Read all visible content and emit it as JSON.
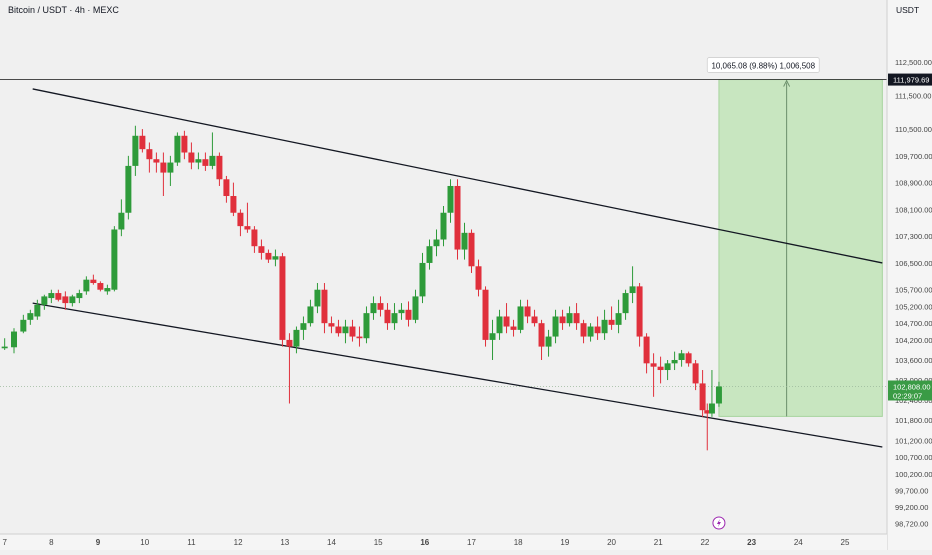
{
  "header": {
    "symbol_title": "Bitcoin / USDT · 4h · MEXC"
  },
  "price_axis": {
    "currency": "USDT",
    "ticks": [
      "112,500.00",
      "111,500.00",
      "110,500.00",
      "109,700.00",
      "108,900.00",
      "108,100.00",
      "107,300.00",
      "106,500.00",
      "105,700.00",
      "105,200.00",
      "104,700.00",
      "104,200.00",
      "103,600.00",
      "103,000.00",
      "102,400.00",
      "101,800.00",
      "101,200.00",
      "100,700.00",
      "100,200.00",
      "99,700.00",
      "99,200.00",
      "98,720.00"
    ]
  },
  "time_axis": {
    "ticks": [
      {
        "label": "7",
        "bold": false
      },
      {
        "label": "8",
        "bold": false
      },
      {
        "label": "9",
        "bold": true
      },
      {
        "label": "10",
        "bold": false
      },
      {
        "label": "11",
        "bold": false
      },
      {
        "label": "12",
        "bold": false
      },
      {
        "label": "13",
        "bold": false
      },
      {
        "label": "14",
        "bold": false
      },
      {
        "label": "15",
        "bold": false
      },
      {
        "label": "16",
        "bold": true
      },
      {
        "label": "17",
        "bold": false
      },
      {
        "label": "18",
        "bold": false
      },
      {
        "label": "19",
        "bold": false
      },
      {
        "label": "20",
        "bold": false
      },
      {
        "label": "21",
        "bold": false
      },
      {
        "label": "22",
        "bold": false
      },
      {
        "label": "23",
        "bold": true
      },
      {
        "label": "24",
        "bold": false
      },
      {
        "label": "25",
        "bold": false
      }
    ]
  },
  "price_labels": {
    "target": "111,979.69",
    "last_price": "102,808.00",
    "countdown": "02:29:07"
  },
  "projection": {
    "label": "10,065.08 (9.88%) 1,006,508"
  },
  "icons": {
    "event_marker": "lightning-icon"
  },
  "colors": {
    "up": "#2e9b3a",
    "down": "#e0303c",
    "zone_fill": "#c8e6c0",
    "zone_border": "#a6d49d",
    "channel_line": "#131722",
    "last_price_bg": "#3a9b45"
  },
  "chart_data": {
    "type": "candlestick",
    "title": "Bitcoin / USDT · 4h · MEXC",
    "y_unit": "USDT",
    "ylim": [
      98400,
      113700
    ],
    "x_axis": "date (day of month)",
    "xlim": [
      6.9,
      25.9
    ],
    "grid": false,
    "candles": [
      {
        "x": 7.0,
        "o": 103950,
        "h": 104250,
        "l": 103900,
        "c": 104000
      },
      {
        "x": 7.2,
        "o": 103980,
        "h": 104550,
        "l": 103800,
        "c": 104450
      },
      {
        "x": 7.4,
        "o": 104450,
        "h": 104950,
        "l": 104400,
        "c": 104800
      },
      {
        "x": 7.55,
        "o": 104800,
        "h": 105100,
        "l": 104650,
        "c": 105000
      },
      {
        "x": 7.7,
        "o": 104900,
        "h": 105400,
        "l": 104800,
        "c": 105250
      },
      {
        "x": 7.85,
        "o": 105250,
        "h": 105550,
        "l": 105100,
        "c": 105500
      },
      {
        "x": 8.0,
        "o": 105450,
        "h": 105700,
        "l": 105300,
        "c": 105600
      },
      {
        "x": 8.15,
        "o": 105600,
        "h": 105700,
        "l": 105350,
        "c": 105400
      },
      {
        "x": 8.3,
        "o": 105500,
        "h": 105650,
        "l": 105100,
        "c": 105300
      },
      {
        "x": 8.45,
        "o": 105300,
        "h": 105550,
        "l": 105200,
        "c": 105500
      },
      {
        "x": 8.6,
        "o": 105450,
        "h": 105700,
        "l": 105300,
        "c": 105600
      },
      {
        "x": 8.75,
        "o": 105650,
        "h": 106100,
        "l": 105550,
        "c": 106000
      },
      {
        "x": 8.9,
        "o": 106000,
        "h": 106150,
        "l": 105850,
        "c": 105900
      },
      {
        "x": 9.05,
        "o": 105900,
        "h": 105950,
        "l": 105650,
        "c": 105700
      },
      {
        "x": 9.2,
        "o": 105650,
        "h": 105850,
        "l": 105550,
        "c": 105750
      },
      {
        "x": 9.35,
        "o": 105700,
        "h": 107600,
        "l": 105650,
        "c": 107500
      },
      {
        "x": 9.5,
        "o": 107500,
        "h": 108400,
        "l": 107300,
        "c": 108000
      },
      {
        "x": 9.65,
        "o": 108000,
        "h": 109700,
        "l": 107800,
        "c": 109400
      },
      {
        "x": 9.8,
        "o": 109400,
        "h": 110600,
        "l": 109100,
        "c": 110300
      },
      {
        "x": 9.95,
        "o": 110300,
        "h": 110500,
        "l": 109800,
        "c": 109900
      },
      {
        "x": 10.1,
        "o": 109900,
        "h": 110100,
        "l": 109200,
        "c": 109600
      },
      {
        "x": 10.25,
        "o": 109600,
        "h": 109800,
        "l": 109200,
        "c": 109500
      },
      {
        "x": 10.4,
        "o": 109500,
        "h": 109800,
        "l": 108500,
        "c": 109200
      },
      {
        "x": 10.55,
        "o": 109200,
        "h": 109700,
        "l": 108800,
        "c": 109500
      },
      {
        "x": 10.7,
        "o": 109500,
        "h": 110400,
        "l": 109400,
        "c": 110300
      },
      {
        "x": 10.85,
        "o": 110300,
        "h": 110450,
        "l": 109600,
        "c": 109800
      },
      {
        "x": 11.0,
        "o": 109800,
        "h": 110100,
        "l": 109300,
        "c": 109500
      },
      {
        "x": 11.15,
        "o": 109500,
        "h": 109800,
        "l": 109300,
        "c": 109600
      },
      {
        "x": 11.3,
        "o": 109600,
        "h": 109800,
        "l": 109250,
        "c": 109400
      },
      {
        "x": 11.45,
        "o": 109400,
        "h": 110400,
        "l": 109300,
        "c": 109700
      },
      {
        "x": 11.6,
        "o": 109700,
        "h": 109800,
        "l": 108800,
        "c": 109000
      },
      {
        "x": 11.75,
        "o": 109000,
        "h": 109100,
        "l": 108300,
        "c": 108500
      },
      {
        "x": 11.9,
        "o": 108500,
        "h": 108900,
        "l": 107900,
        "c": 108000
      },
      {
        "x": 12.05,
        "o": 108000,
        "h": 108100,
        "l": 107300,
        "c": 107600
      },
      {
        "x": 12.2,
        "o": 107600,
        "h": 108300,
        "l": 107400,
        "c": 107500
      },
      {
        "x": 12.35,
        "o": 107500,
        "h": 107600,
        "l": 106800,
        "c": 107000
      },
      {
        "x": 12.5,
        "o": 107000,
        "h": 107200,
        "l": 106600,
        "c": 106800
      },
      {
        "x": 12.65,
        "o": 106800,
        "h": 106900,
        "l": 106500,
        "c": 106600
      },
      {
        "x": 12.8,
        "o": 106600,
        "h": 106900,
        "l": 106400,
        "c": 106700
      },
      {
        "x": 12.95,
        "o": 106700,
        "h": 106800,
        "l": 104000,
        "c": 104200
      },
      {
        "x": 13.1,
        "o": 104200,
        "h": 104400,
        "l": 102300,
        "c": 104000
      },
      {
        "x": 13.25,
        "o": 104000,
        "h": 104600,
        "l": 103800,
        "c": 104500
      },
      {
        "x": 13.4,
        "o": 104500,
        "h": 104900,
        "l": 104200,
        "c": 104700
      },
      {
        "x": 13.55,
        "o": 104700,
        "h": 105400,
        "l": 104600,
        "c": 105200
      },
      {
        "x": 13.7,
        "o": 105200,
        "h": 105900,
        "l": 105000,
        "c": 105700
      },
      {
        "x": 13.85,
        "o": 105700,
        "h": 105900,
        "l": 104400,
        "c": 104700
      },
      {
        "x": 14.0,
        "o": 104700,
        "h": 104900,
        "l": 104400,
        "c": 104600
      },
      {
        "x": 14.15,
        "o": 104600,
        "h": 104800,
        "l": 104300,
        "c": 104400
      },
      {
        "x": 14.3,
        "o": 104400,
        "h": 104800,
        "l": 104100,
        "c": 104600
      },
      {
        "x": 14.45,
        "o": 104600,
        "h": 104800,
        "l": 104150,
        "c": 104300
      },
      {
        "x": 14.6,
        "o": 104300,
        "h": 104600,
        "l": 104000,
        "c": 104250
      },
      {
        "x": 14.75,
        "o": 104250,
        "h": 105200,
        "l": 104100,
        "c": 105000
      },
      {
        "x": 14.9,
        "o": 105000,
        "h": 105500,
        "l": 104800,
        "c": 105300
      },
      {
        "x": 15.05,
        "o": 105300,
        "h": 105500,
        "l": 104900,
        "c": 105100
      },
      {
        "x": 15.2,
        "o": 105100,
        "h": 105300,
        "l": 104500,
        "c": 104700
      },
      {
        "x": 15.35,
        "o": 104700,
        "h": 105300,
        "l": 104500,
        "c": 105000
      },
      {
        "x": 15.5,
        "o": 105000,
        "h": 105300,
        "l": 104800,
        "c": 105100
      },
      {
        "x": 15.65,
        "o": 105100,
        "h": 105350,
        "l": 104600,
        "c": 104800
      },
      {
        "x": 15.8,
        "o": 104800,
        "h": 105700,
        "l": 104700,
        "c": 105500
      },
      {
        "x": 15.95,
        "o": 105500,
        "h": 106800,
        "l": 105300,
        "c": 106500
      },
      {
        "x": 16.1,
        "o": 106500,
        "h": 107200,
        "l": 106300,
        "c": 107000
      },
      {
        "x": 16.25,
        "o": 107000,
        "h": 107500,
        "l": 106700,
        "c": 107200
      },
      {
        "x": 16.4,
        "o": 107200,
        "h": 108200,
        "l": 107000,
        "c": 108000
      },
      {
        "x": 16.55,
        "o": 108000,
        "h": 109000,
        "l": 107700,
        "c": 108800
      },
      {
        "x": 16.7,
        "o": 108800,
        "h": 109000,
        "l": 106600,
        "c": 106900
      },
      {
        "x": 16.85,
        "o": 106900,
        "h": 107700,
        "l": 106600,
        "c": 107400
      },
      {
        "x": 17.0,
        "o": 107400,
        "h": 107500,
        "l": 106200,
        "c": 106400
      },
      {
        "x": 17.15,
        "o": 106400,
        "h": 106600,
        "l": 105500,
        "c": 105700
      },
      {
        "x": 17.3,
        "o": 105700,
        "h": 105800,
        "l": 104000,
        "c": 104200
      },
      {
        "x": 17.45,
        "o": 104200,
        "h": 104800,
        "l": 103600,
        "c": 104400
      },
      {
        "x": 17.6,
        "o": 104400,
        "h": 105100,
        "l": 104200,
        "c": 104900
      },
      {
        "x": 17.75,
        "o": 104900,
        "h": 105300,
        "l": 104400,
        "c": 104600
      },
      {
        "x": 17.9,
        "o": 104600,
        "h": 104800,
        "l": 104300,
        "c": 104500
      },
      {
        "x": 18.05,
        "o": 104500,
        "h": 105400,
        "l": 104400,
        "c": 105200
      },
      {
        "x": 18.2,
        "o": 105200,
        "h": 105400,
        "l": 104700,
        "c": 104900
      },
      {
        "x": 18.35,
        "o": 104900,
        "h": 105100,
        "l": 104600,
        "c": 104700
      },
      {
        "x": 18.5,
        "o": 104700,
        "h": 104800,
        "l": 103600,
        "c": 104000
      },
      {
        "x": 18.65,
        "o": 104000,
        "h": 104500,
        "l": 103700,
        "c": 104300
      },
      {
        "x": 18.8,
        "o": 104300,
        "h": 105100,
        "l": 104100,
        "c": 104900
      },
      {
        "x": 18.95,
        "o": 104900,
        "h": 105100,
        "l": 104500,
        "c": 104700
      },
      {
        "x": 19.1,
        "o": 104700,
        "h": 105200,
        "l": 104600,
        "c": 105000
      },
      {
        "x": 19.25,
        "o": 105000,
        "h": 105300,
        "l": 104500,
        "c": 104700
      },
      {
        "x": 19.4,
        "o": 104700,
        "h": 104800,
        "l": 104100,
        "c": 104300
      },
      {
        "x": 19.55,
        "o": 104300,
        "h": 104700,
        "l": 104150,
        "c": 104600
      },
      {
        "x": 19.7,
        "o": 104600,
        "h": 104900,
        "l": 104200,
        "c": 104400
      },
      {
        "x": 19.85,
        "o": 104400,
        "h": 105100,
        "l": 104200,
        "c": 104800
      },
      {
        "x": 20.0,
        "o": 104800,
        "h": 105200,
        "l": 104500,
        "c": 104650
      },
      {
        "x": 20.15,
        "o": 104650,
        "h": 105400,
        "l": 104400,
        "c": 105000
      },
      {
        "x": 20.3,
        "o": 105000,
        "h": 105700,
        "l": 104800,
        "c": 105600
      },
      {
        "x": 20.45,
        "o": 105600,
        "h": 106400,
        "l": 105300,
        "c": 105800
      },
      {
        "x": 20.6,
        "o": 105800,
        "h": 105900,
        "l": 104000,
        "c": 104300
      },
      {
        "x": 20.75,
        "o": 104300,
        "h": 104400,
        "l": 103200,
        "c": 103500
      },
      {
        "x": 20.9,
        "o": 103500,
        "h": 103800,
        "l": 102500,
        "c": 103400
      },
      {
        "x": 21.05,
        "o": 103400,
        "h": 103700,
        "l": 102900,
        "c": 103300
      },
      {
        "x": 21.2,
        "o": 103300,
        "h": 103600,
        "l": 103000,
        "c": 103500
      },
      {
        "x": 21.35,
        "o": 103500,
        "h": 103850,
        "l": 103300,
        "c": 103600
      },
      {
        "x": 21.5,
        "o": 103600,
        "h": 103900,
        "l": 103400,
        "c": 103800
      },
      {
        "x": 21.65,
        "o": 103800,
        "h": 103850,
        "l": 103400,
        "c": 103500
      },
      {
        "x": 21.8,
        "o": 103500,
        "h": 103600,
        "l": 102700,
        "c": 102900
      },
      {
        "x": 21.95,
        "o": 102900,
        "h": 103300,
        "l": 101900,
        "c": 102100
      },
      {
        "x": 22.05,
        "o": 102100,
        "h": 102300,
        "l": 100900,
        "c": 102000
      },
      {
        "x": 22.15,
        "o": 102000,
        "h": 103300,
        "l": 101900,
        "c": 102300
      },
      {
        "x": 22.3,
        "o": 102300,
        "h": 102950,
        "l": 102200,
        "c": 102808
      }
    ],
    "channel_upper": [
      {
        "x": 7.6,
        "y": 111700
      },
      {
        "x": 25.8,
        "y": 106500
      }
    ],
    "channel_lower": [
      {
        "x": 7.6,
        "y": 105300
      },
      {
        "x": 25.8,
        "y": 101000
      }
    ],
    "target_zone": {
      "x_start": 22.3,
      "x_end": 25.8,
      "y_low": 101914.61,
      "y_high": 111979.69
    },
    "target_price": 111979.69,
    "last_price": 102808.0
  }
}
